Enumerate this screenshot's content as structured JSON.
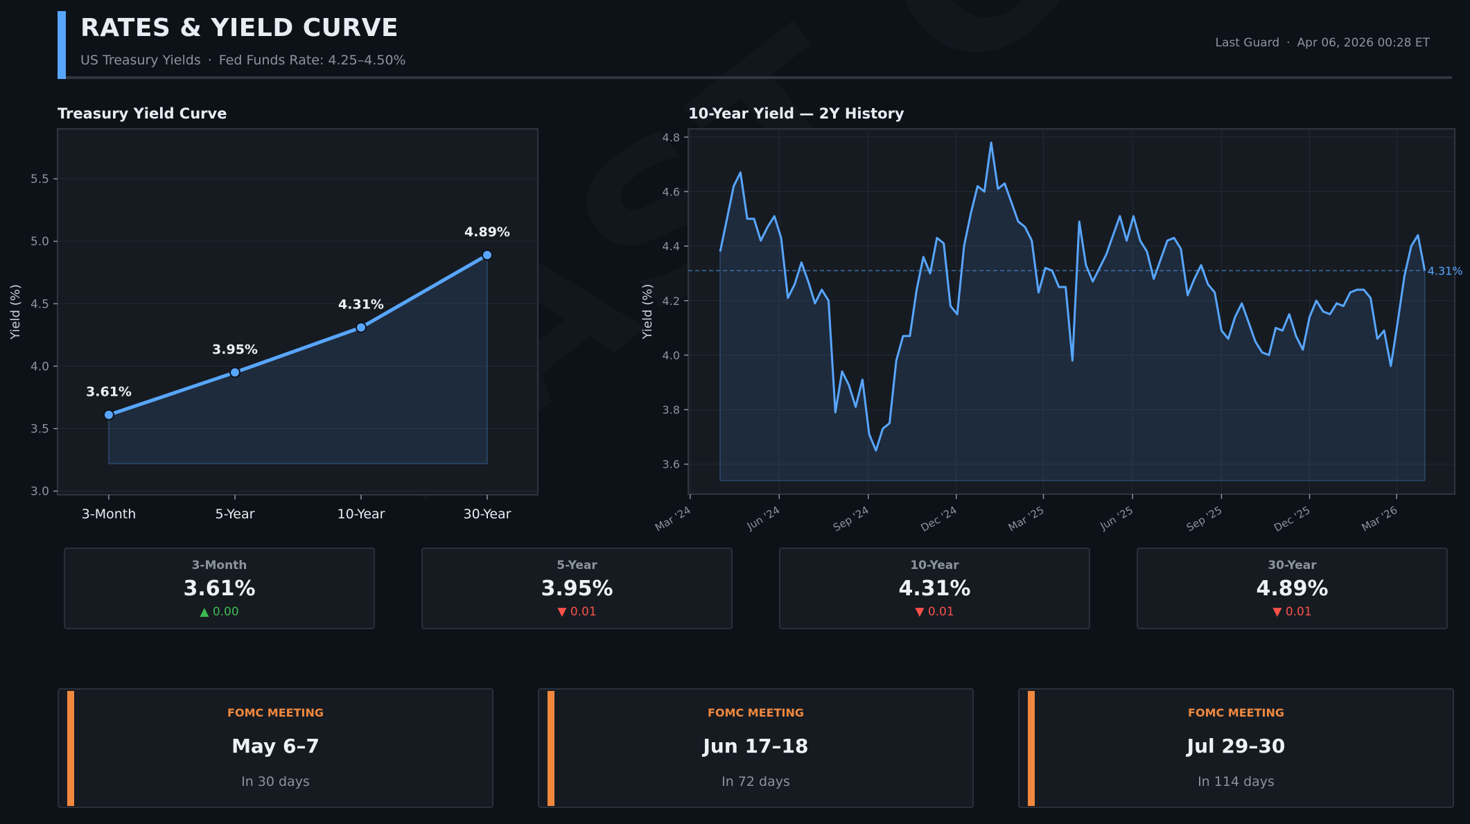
{
  "header": {
    "title": "RATES & YIELD CURVE",
    "subtitle_left": "US Treasury Yields",
    "subtitle_sep": "·",
    "subtitle_right": "Fed Funds Rate: 4.25–4.50%",
    "source": "Last Guard",
    "timestamp": "Apr 06, 2026  00:28 ET",
    "accent_color": "#58a6ff"
  },
  "watermark": "LAST GUARD",
  "chart_data": [
    {
      "type": "line",
      "title": "Treasury Yield Curve",
      "xlabel": "",
      "ylabel": "Yield (%)",
      "categories": [
        "3-Month",
        "5-Year",
        "10-Year",
        "30-Year"
      ],
      "values": [
        3.61,
        3.95,
        4.31,
        4.89
      ],
      "data_labels": [
        "3.61%",
        "3.95%",
        "4.31%",
        "4.89%"
      ],
      "ylim": [
        2.97,
        5.9
      ],
      "yticks": [
        3.0,
        3.5,
        4.0,
        4.5,
        5.0,
        5.5
      ],
      "ytick_labels": [
        "3.0",
        "3.5",
        "4.0",
        "4.5",
        "5.0",
        "5.5"
      ],
      "fill_base": 3.22,
      "grid": true,
      "color": "#58a6ff"
    },
    {
      "type": "area",
      "title": "10-Year Yield — 2Y History",
      "xlabel": "",
      "ylabel": "Yield (%)",
      "x_start_day": 31,
      "x_step_days": 7,
      "x_unit": "days since Mar 1 2024",
      "values": [
        4.38,
        4.5,
        4.62,
        4.67,
        4.5,
        4.5,
        4.42,
        4.47,
        4.51,
        4.43,
        4.21,
        4.26,
        4.34,
        4.27,
        4.19,
        4.24,
        4.2,
        3.79,
        3.94,
        3.89,
        3.81,
        3.91,
        3.71,
        3.65,
        3.73,
        3.75,
        3.98,
        4.07,
        4.07,
        4.24,
        4.36,
        4.3,
        4.43,
        4.41,
        4.18,
        4.15,
        4.4,
        4.52,
        4.62,
        4.6,
        4.78,
        4.61,
        4.63,
        4.56,
        4.49,
        4.47,
        4.42,
        4.23,
        4.32,
        4.31,
        4.25,
        4.25,
        3.98,
        4.49,
        4.33,
        4.27,
        4.32,
        4.37,
        4.44,
        4.51,
        4.42,
        4.51,
        4.42,
        4.38,
        4.28,
        4.35,
        4.42,
        4.43,
        4.39,
        4.22,
        4.28,
        4.33,
        4.26,
        4.23,
        4.09,
        4.06,
        4.14,
        4.19,
        4.12,
        4.05,
        4.01,
        4.0,
        4.1,
        4.09,
        4.15,
        4.07,
        4.02,
        4.14,
        4.2,
        4.16,
        4.15,
        4.19,
        4.18,
        4.23,
        4.24,
        4.24,
        4.21,
        4.06,
        4.09,
        3.96,
        4.12,
        4.29,
        4.4,
        4.44,
        4.31
      ],
      "xticks": [
        {
          "label": "Mar '24",
          "day": 0
        },
        {
          "label": "Jun '24",
          "day": 92
        },
        {
          "label": "Sep '24",
          "day": 184
        },
        {
          "label": "Dec '24",
          "day": 275
        },
        {
          "label": "Mar '25",
          "day": 365
        },
        {
          "label": "Jun '25",
          "day": 457
        },
        {
          "label": "Sep '25",
          "day": 549
        },
        {
          "label": "Dec '25",
          "day": 640
        },
        {
          "label": "Mar '26",
          "day": 730
        }
      ],
      "xlim": [
        -2,
        790
      ],
      "ylim": [
        3.49,
        4.83
      ],
      "yticks": [
        3.6,
        3.8,
        4.0,
        4.2,
        4.4,
        4.6,
        4.8
      ],
      "ytick_labels": [
        "3.6",
        "3.8",
        "4.0",
        "4.2",
        "4.4",
        "4.6",
        "4.8"
      ],
      "fill_base": 3.54,
      "reference_line": 4.31,
      "reference_label": "4.31%",
      "grid": true,
      "color": "#58a6ff"
    }
  ],
  "stats": [
    {
      "label": "3-Month",
      "value": "3.61%",
      "direction": "up",
      "arrow": "▲",
      "change": "0.00"
    },
    {
      "label": "5-Year",
      "value": "3.95%",
      "direction": "down",
      "arrow": "▼",
      "change": "0.01"
    },
    {
      "label": "10-Year",
      "value": "4.31%",
      "direction": "down",
      "arrow": "▼",
      "change": "0.01"
    },
    {
      "label": "30-Year",
      "value": "4.89%",
      "direction": "down",
      "arrow": "▼",
      "change": "0.01"
    }
  ],
  "fomc": [
    {
      "label": "FOMC MEETING",
      "date": "May 6–7",
      "countdown": "In 30 days"
    },
    {
      "label": "FOMC MEETING",
      "date": "Jun 17–18",
      "countdown": "In 72 days"
    },
    {
      "label": "FOMC MEETING",
      "date": "Jul 29–30",
      "countdown": "In 114 days"
    }
  ],
  "colors": {
    "up": "#3fb950",
    "down": "#f85149",
    "fomc_accent": "#f0883e",
    "line": "#58a6ff"
  }
}
